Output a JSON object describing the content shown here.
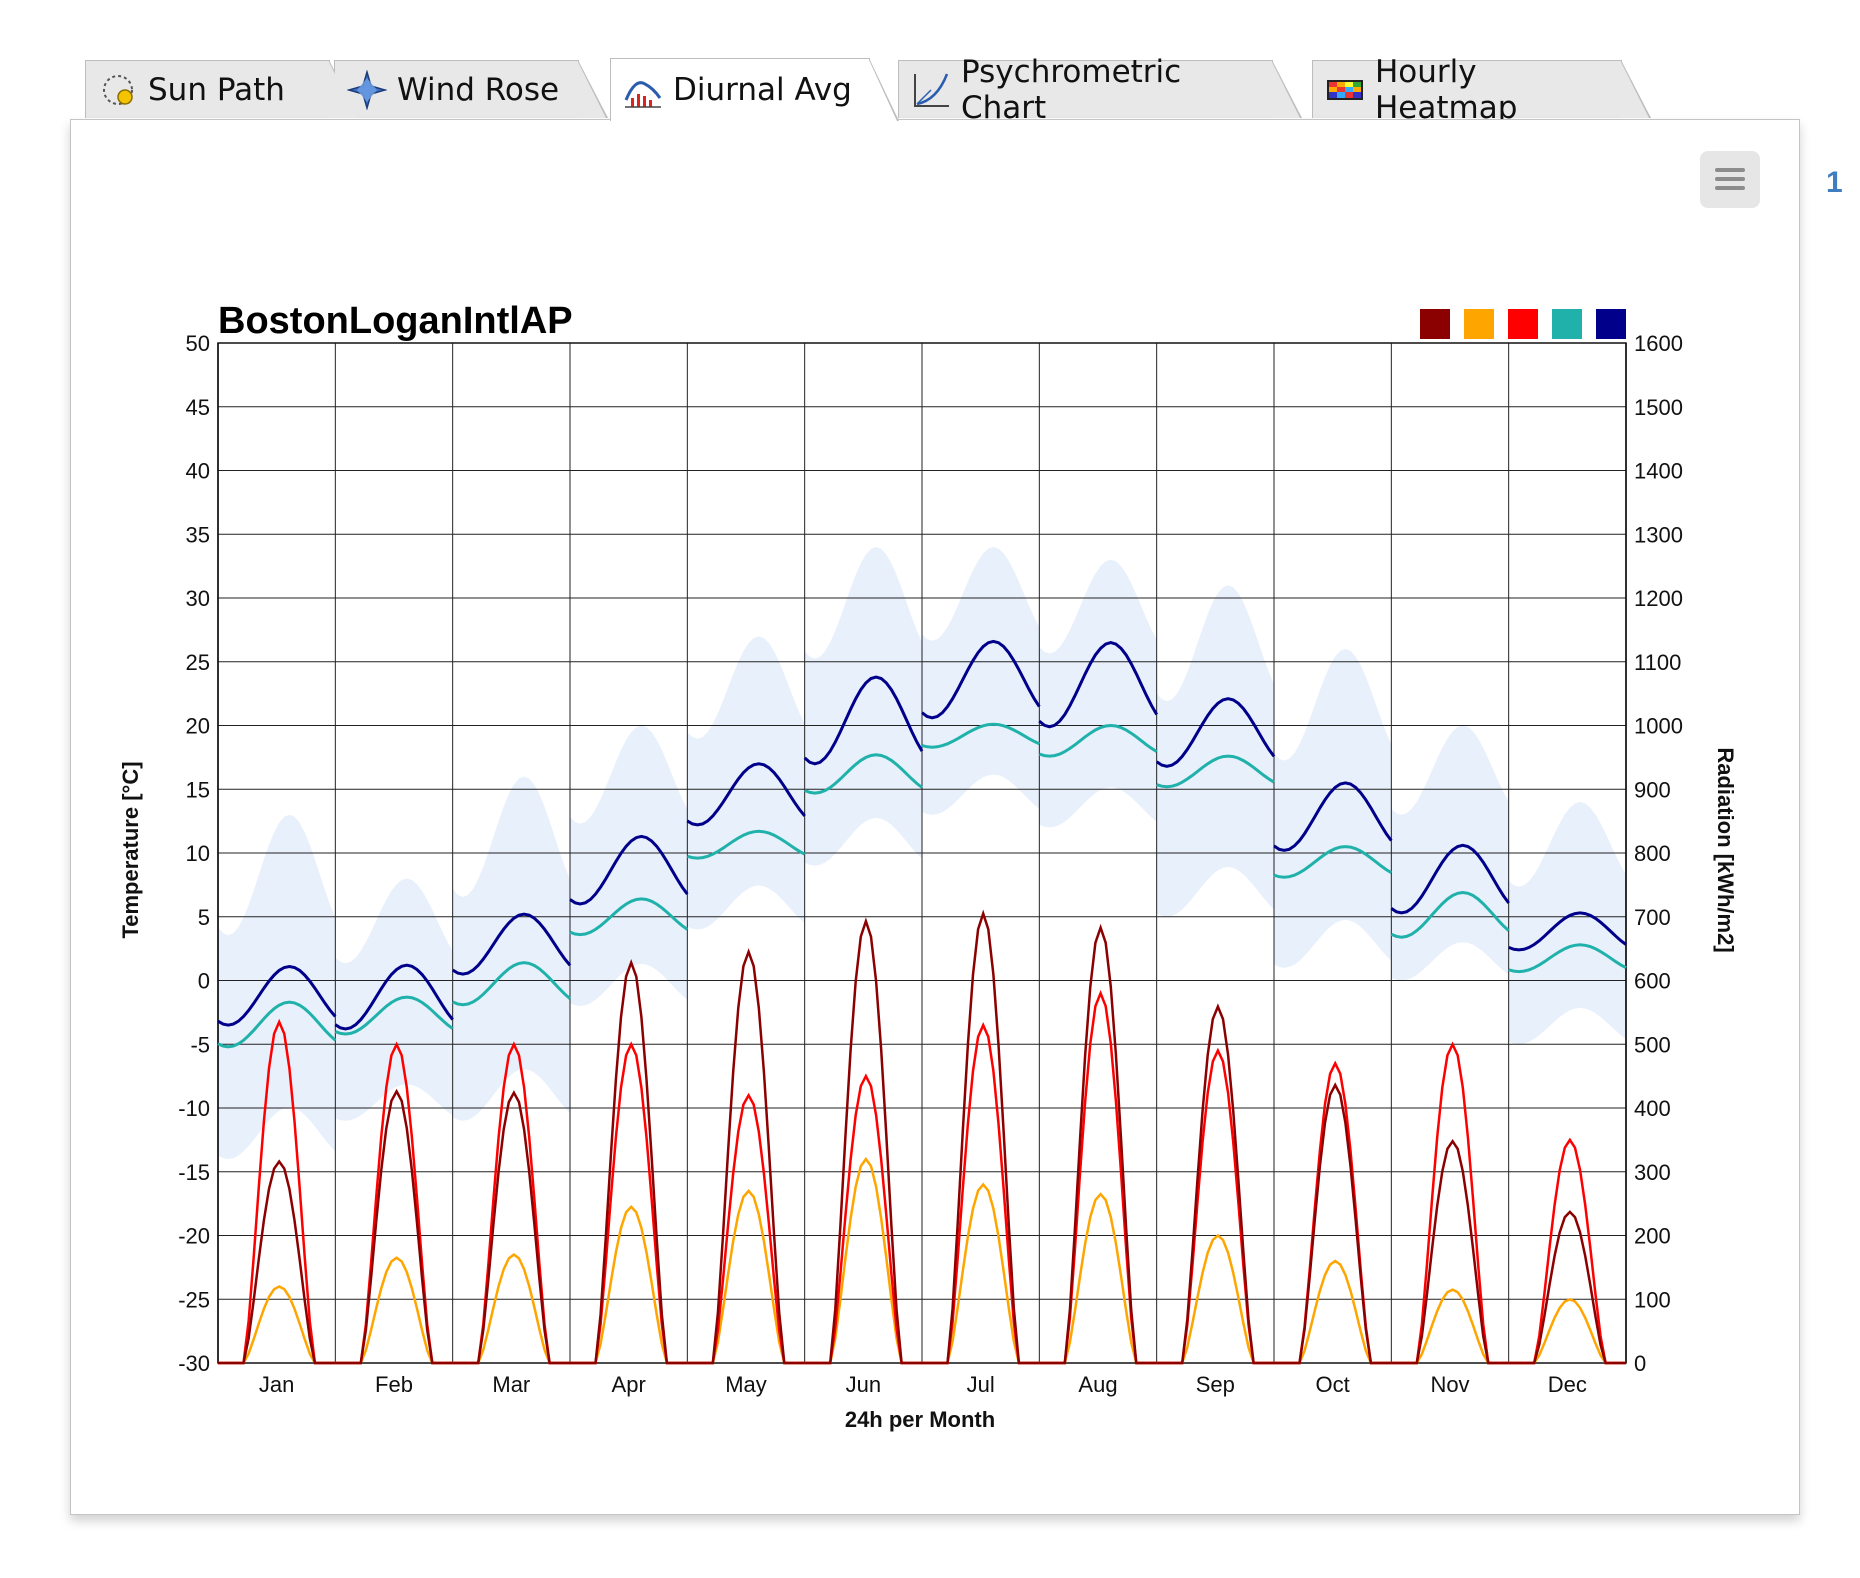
{
  "tabs": [
    {
      "label": "Sun Path",
      "icon": "sun-path-icon",
      "active": false
    },
    {
      "label": "Wind Rose",
      "icon": "wind-rose-icon",
      "active": false
    },
    {
      "label": "Diurnal Avg",
      "icon": "diurnal-avg-icon",
      "active": true
    },
    {
      "label": "Psychrometric Chart",
      "icon": "psychrometric-icon",
      "active": false
    },
    {
      "label": "Hourly Heatmap",
      "icon": "heatmap-icon",
      "active": false
    }
  ],
  "side_number": "1",
  "menu_icon": "hamburger-menu-icon",
  "chart_data": {
    "type": "line",
    "title": "BostonLoganIntlAP",
    "xlabel": "24h per Month",
    "ylabel_left": "Temperature [°C]",
    "ylabel_right": "Radiation [kWh/m2]",
    "ylim_left": [
      -30,
      50
    ],
    "ylim_right": [
      0,
      1600
    ],
    "yticks_left": [
      "50",
      "45",
      "40",
      "35",
      "30",
      "25",
      "20",
      "15",
      "10",
      "5",
      "0",
      "-5",
      "-10",
      "-15",
      "-20",
      "-25",
      "-30"
    ],
    "yticks_right": [
      "1600",
      "1500",
      "1400",
      "1300",
      "1200",
      "1100",
      "1000",
      "900",
      "800",
      "700",
      "600",
      "500",
      "400",
      "300",
      "200",
      "100",
      "0"
    ],
    "months": [
      "Jan",
      "Feb",
      "Mar",
      "Apr",
      "May",
      "Jun",
      "Jul",
      "Aug",
      "Sep",
      "Oct",
      "Nov",
      "Dec"
    ],
    "grid": true,
    "legend_position": "top-right",
    "legend_colors": [
      "#8b0000",
      "#ffa500",
      "#ff0000",
      "#20b2aa",
      "#00008b"
    ],
    "colors": {
      "dry_bulb": "#00008b",
      "dew_point": "#20b2aa",
      "range_band": "#e8f0fc",
      "direct_radiation": "#8b0000",
      "global_radiation": "#ff0000",
      "diffuse_radiation": "#ffa500"
    },
    "series": [
      {
        "key": "dry_bulb",
        "min": [
          -3.5,
          -3.8,
          0.5,
          6.0,
          12.2,
          17.0,
          20.6,
          19.9,
          16.8,
          10.2,
          5.3,
          2.4
        ],
        "max": [
          1.1,
          1.2,
          5.2,
          11.3,
          17.0,
          23.8,
          26.6,
          26.5,
          22.1,
          15.5,
          10.6,
          5.3
        ]
      },
      {
        "key": "dew_point",
        "min": [
          -5.2,
          -4.2,
          -1.9,
          3.6,
          9.6,
          14.7,
          18.3,
          17.6,
          15.2,
          8.1,
          3.4,
          0.7
        ],
        "max": [
          -1.7,
          -1.3,
          1.4,
          6.4,
          11.7,
          17.7,
          20.1,
          20.0,
          17.6,
          10.5,
          6.9,
          2.8
        ]
      },
      {
        "key": "range_band",
        "min": [
          -14.0,
          -11.0,
          -11.0,
          -2.0,
          4.0,
          9.0,
          13.0,
          12.0,
          5.0,
          1.0,
          0.0,
          -5.0
        ],
        "max": [
          13.0,
          8.0,
          16.0,
          20.0,
          27.0,
          34.0,
          34.0,
          33.0,
          31.0,
          26.0,
          20.0,
          14.0
        ]
      },
      {
        "key": "direct_radiation",
        "peak": [
          316,
          426,
          424,
          628,
          645,
          693,
          705,
          683,
          559,
          436,
          348,
          237
        ]
      },
      {
        "key": "global_radiation",
        "peak": [
          535,
          500,
          500,
          500,
          420,
          450,
          530,
          580,
          490,
          470,
          500,
          350
        ]
      },
      {
        "key": "diffuse_radiation",
        "peak": [
          120,
          165,
          170,
          245,
          270,
          320,
          280,
          265,
          200,
          160,
          115,
          100
        ]
      }
    ]
  }
}
